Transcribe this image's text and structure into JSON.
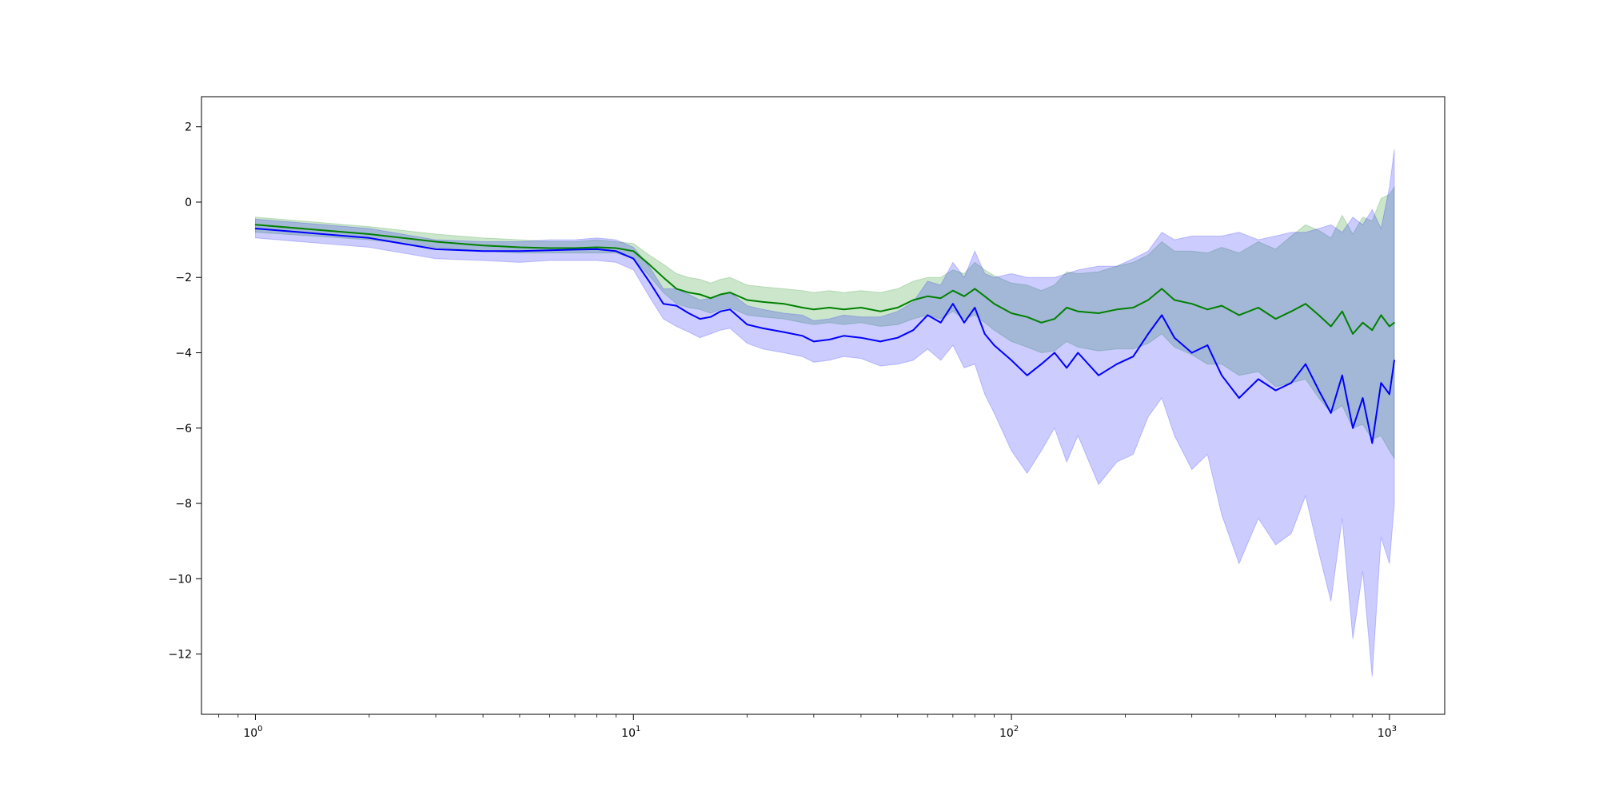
{
  "chart_data": {
    "type": "line",
    "title": "",
    "xlabel": "",
    "ylabel": "",
    "xscale": "log",
    "xlim": [
      0.72,
      1400
    ],
    "ylim": [
      -13.6,
      2.8
    ],
    "grid": false,
    "legend": "none",
    "x_ticks": [
      {
        "value": 1,
        "mantissa": "10",
        "exponent": "0"
      },
      {
        "value": 10,
        "mantissa": "10",
        "exponent": "1"
      },
      {
        "value": 100,
        "mantissa": "10",
        "exponent": "2"
      },
      {
        "value": 1000,
        "mantissa": "10",
        "exponent": "3"
      }
    ],
    "y_ticks": [
      {
        "value": 2,
        "label": "2"
      },
      {
        "value": 0,
        "label": "0"
      },
      {
        "value": -2,
        "label": "−2"
      },
      {
        "value": -4,
        "label": "−4"
      },
      {
        "value": -6,
        "label": "−6"
      },
      {
        "value": -8,
        "label": "−8"
      },
      {
        "value": -10,
        "label": "−10"
      },
      {
        "value": -12,
        "label": "−12"
      }
    ],
    "series": [
      {
        "color": "#008000",
        "band_color": "#008000",
        "x": [
          1,
          2,
          3,
          4,
          5,
          6,
          7,
          8,
          9,
          10,
          11,
          12,
          13,
          14,
          15,
          16,
          17,
          18,
          20,
          22,
          25,
          28,
          30,
          33,
          36,
          40,
          45,
          50,
          55,
          60,
          65,
          70,
          75,
          80,
          85,
          90,
          100,
          110,
          120,
          130,
          140,
          150,
          170,
          190,
          210,
          230,
          250,
          270,
          300,
          330,
          360,
          400,
          450,
          500,
          550,
          600,
          650,
          700,
          750,
          800,
          850,
          900,
          950,
          1000,
          1030
        ],
        "mean": [
          -0.6,
          -0.85,
          -1.05,
          -1.15,
          -1.2,
          -1.22,
          -1.22,
          -1.2,
          -1.22,
          -1.3,
          -1.65,
          -2.0,
          -2.3,
          -2.4,
          -2.45,
          -2.55,
          -2.45,
          -2.4,
          -2.6,
          -2.65,
          -2.7,
          -2.8,
          -2.85,
          -2.8,
          -2.85,
          -2.8,
          -2.9,
          -2.8,
          -2.6,
          -2.5,
          -2.55,
          -2.35,
          -2.5,
          -2.3,
          -2.5,
          -2.7,
          -2.95,
          -3.05,
          -3.2,
          -3.1,
          -2.8,
          -2.9,
          -2.95,
          -2.85,
          -2.8,
          -2.6,
          -2.3,
          -2.6,
          -2.7,
          -2.85,
          -2.75,
          -3.0,
          -2.8,
          -3.1,
          -2.9,
          -2.7,
          -3.0,
          -3.3,
          -2.9,
          -3.5,
          -3.2,
          -3.4,
          -3.0,
          -3.3,
          -3.2
        ],
        "lower": [
          -0.8,
          -1.0,
          -1.2,
          -1.3,
          -1.35,
          -1.35,
          -1.35,
          -1.35,
          -1.35,
          -1.5,
          -1.95,
          -2.4,
          -2.7,
          -2.8,
          -2.85,
          -2.95,
          -2.85,
          -2.8,
          -3.0,
          -3.05,
          -3.1,
          -3.2,
          -3.25,
          -3.2,
          -3.25,
          -3.2,
          -3.3,
          -3.25,
          -3.1,
          -3.0,
          -3.1,
          -2.9,
          -3.1,
          -3.0,
          -3.2,
          -3.4,
          -3.7,
          -3.85,
          -4.0,
          -3.95,
          -3.7,
          -3.85,
          -3.95,
          -3.9,
          -3.9,
          -3.75,
          -3.5,
          -3.85,
          -4.05,
          -4.3,
          -4.3,
          -4.6,
          -4.5,
          -4.9,
          -4.8,
          -4.7,
          -5.2,
          -5.6,
          -5.4,
          -6.0,
          -5.9,
          -6.3,
          -6.2,
          -6.6,
          -6.8
        ],
        "upper": [
          -0.4,
          -0.65,
          -0.85,
          -0.95,
          -1.0,
          -1.05,
          -1.05,
          -1.0,
          -1.05,
          -1.1,
          -1.4,
          -1.65,
          -1.9,
          -2.0,
          -2.05,
          -2.15,
          -2.05,
          -2.0,
          -2.2,
          -2.25,
          -2.3,
          -2.35,
          -2.4,
          -2.35,
          -2.4,
          -2.35,
          -2.4,
          -2.3,
          -2.1,
          -2.0,
          -2.0,
          -1.8,
          -1.9,
          -1.6,
          -1.8,
          -1.95,
          -2.15,
          -2.2,
          -2.35,
          -2.2,
          -1.85,
          -1.9,
          -1.85,
          -1.7,
          -1.6,
          -1.4,
          -1.05,
          -1.3,
          -1.3,
          -1.35,
          -1.2,
          -1.35,
          -1.05,
          -1.25,
          -0.9,
          -0.6,
          -0.75,
          -0.95,
          -0.35,
          -0.85,
          -0.4,
          -0.5,
          0.1,
          0.2,
          0.4
        ]
      },
      {
        "color": "#0000ff",
        "band_color": "#0000ff",
        "x": [
          1,
          2,
          3,
          4,
          5,
          6,
          7,
          8,
          9,
          10,
          11,
          12,
          13,
          14,
          15,
          16,
          17,
          18,
          20,
          22,
          25,
          28,
          30,
          33,
          36,
          40,
          45,
          50,
          55,
          60,
          65,
          70,
          75,
          80,
          85,
          90,
          100,
          110,
          120,
          130,
          140,
          150,
          170,
          190,
          210,
          230,
          250,
          270,
          300,
          330,
          360,
          400,
          450,
          500,
          550,
          600,
          650,
          700,
          750,
          800,
          850,
          900,
          950,
          1000,
          1030
        ],
        "mean": [
          -0.7,
          -0.95,
          -1.25,
          -1.3,
          -1.3,
          -1.28,
          -1.26,
          -1.25,
          -1.3,
          -1.5,
          -2.1,
          -2.7,
          -2.75,
          -2.95,
          -3.1,
          -3.05,
          -2.9,
          -2.85,
          -3.25,
          -3.35,
          -3.45,
          -3.55,
          -3.7,
          -3.65,
          -3.55,
          -3.6,
          -3.7,
          -3.6,
          -3.4,
          -3.0,
          -3.2,
          -2.7,
          -3.2,
          -2.8,
          -3.5,
          -3.8,
          -4.2,
          -4.6,
          -4.3,
          -4.0,
          -4.4,
          -4.0,
          -4.6,
          -4.3,
          -4.1,
          -3.5,
          -3.0,
          -3.6,
          -4.0,
          -3.8,
          -4.6,
          -5.2,
          -4.7,
          -5.0,
          -4.8,
          -4.3,
          -5.0,
          -5.6,
          -4.6,
          -6.0,
          -5.2,
          -6.4,
          -4.8,
          -5.1,
          -4.2
        ],
        "lower": [
          -0.95,
          -1.2,
          -1.5,
          -1.55,
          -1.6,
          -1.55,
          -1.55,
          -1.55,
          -1.6,
          -1.8,
          -2.5,
          -3.1,
          -3.3,
          -3.45,
          -3.6,
          -3.5,
          -3.4,
          -3.35,
          -3.75,
          -3.9,
          -4.0,
          -4.1,
          -4.25,
          -4.2,
          -4.1,
          -4.15,
          -4.35,
          -4.3,
          -4.2,
          -3.9,
          -4.2,
          -3.8,
          -4.4,
          -4.3,
          -5.1,
          -5.6,
          -6.6,
          -7.2,
          -6.6,
          -6.0,
          -6.9,
          -6.2,
          -7.5,
          -6.9,
          -6.7,
          -5.7,
          -5.2,
          -6.2,
          -7.1,
          -6.7,
          -8.3,
          -9.6,
          -8.4,
          -9.1,
          -8.8,
          -7.8,
          -9.3,
          -10.6,
          -8.4,
          -11.6,
          -9.8,
          -12.6,
          -8.9,
          -9.6,
          -8.0
        ],
        "upper": [
          -0.45,
          -0.7,
          -1.0,
          -1.05,
          -1.05,
          -1.0,
          -1.0,
          -0.95,
          -1.0,
          -1.2,
          -1.7,
          -2.3,
          -2.3,
          -2.45,
          -2.6,
          -2.55,
          -2.45,
          -2.4,
          -2.75,
          -2.85,
          -2.95,
          -3.0,
          -3.15,
          -3.1,
          -3.0,
          -3.05,
          -3.05,
          -2.9,
          -2.65,
          -2.1,
          -2.2,
          -1.6,
          -2.0,
          -1.3,
          -1.9,
          -2.0,
          -1.9,
          -2.0,
          -2.0,
          -2.0,
          -1.9,
          -1.8,
          -1.7,
          -1.7,
          -1.5,
          -1.3,
          -0.8,
          -1.0,
          -0.9,
          -0.9,
          -0.9,
          -0.8,
          -1.0,
          -0.9,
          -0.8,
          -0.8,
          -0.7,
          -0.6,
          -0.8,
          -0.4,
          -0.6,
          -0.2,
          -0.7,
          0.4,
          1.4
        ]
      }
    ]
  }
}
